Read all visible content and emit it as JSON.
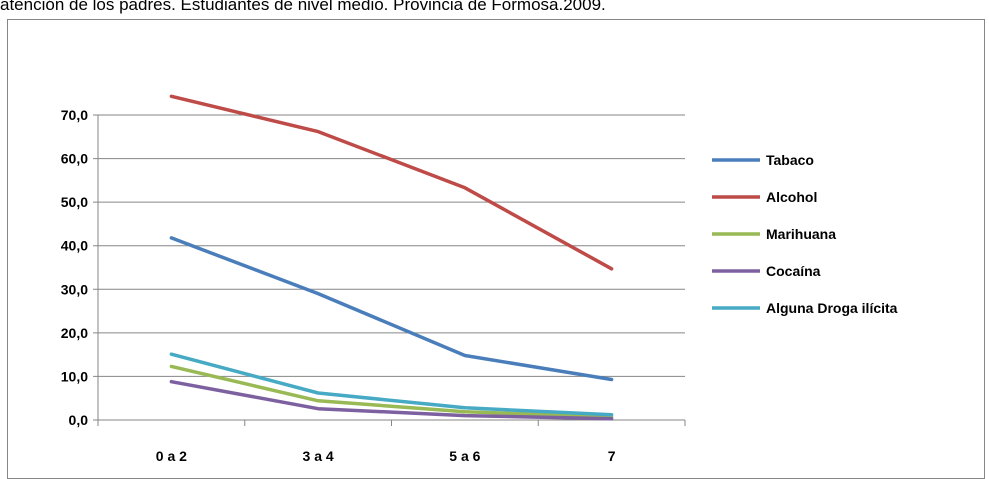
{
  "caption": "atención de los padres. Estudiantes de nivel medio. Provincia de Formosa.2009.",
  "chart_data": {
    "type": "line",
    "categories": [
      "0 a 2",
      "3 a 4",
      "5 a 6",
      "7"
    ],
    "ylim": [
      0,
      70
    ],
    "yticks": [
      "0,0",
      "10,0",
      "20,0",
      "30,0",
      "40,0",
      "50,0",
      "60,0",
      "70,0"
    ],
    "grid": true,
    "legend": "right",
    "series": [
      {
        "name": "Tabaco",
        "color": "#4a7ebb",
        "values": [
          41.8,
          29.0,
          14.8,
          9.3
        ]
      },
      {
        "name": "Alcohol",
        "color": "#be4b48",
        "values": [
          74.3,
          66.2,
          53.3,
          34.7
        ]
      },
      {
        "name": "Marihuana",
        "color": "#98b954",
        "values": [
          12.3,
          4.4,
          1.9,
          0.7
        ]
      },
      {
        "name": "Cocaína",
        "color": "#7d60a0",
        "values": [
          8.8,
          2.6,
          1.0,
          0.3
        ]
      },
      {
        "name": "Alguna Droga ilícita",
        "color": "#46aac5",
        "values": [
          15.1,
          6.2,
          2.8,
          1.2
        ]
      }
    ]
  }
}
